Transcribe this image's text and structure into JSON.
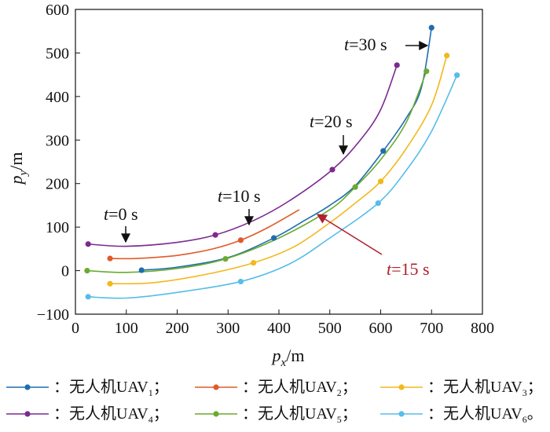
{
  "chart_data": {
    "type": "line",
    "xlabel": {
      "symbol": "p",
      "sub": "x",
      "unit": "/m"
    },
    "ylabel": {
      "symbol": "p",
      "sub": "y",
      "unit": "/m"
    },
    "xlim": [
      0,
      800
    ],
    "ylim": [
      -100,
      600
    ],
    "xticks": [
      0,
      100,
      200,
      300,
      400,
      500,
      600,
      700,
      800
    ],
    "yticks": [
      -100,
      0,
      100,
      200,
      300,
      400,
      500,
      600
    ],
    "grid": false,
    "legend_position": "bottom",
    "annotations": [
      {
        "time": "0",
        "unit": "s",
        "color": "black",
        "arrow": "down"
      },
      {
        "time": "10",
        "unit": "s",
        "color": "black",
        "arrow": "down"
      },
      {
        "time": "20",
        "unit": "s",
        "color": "black",
        "arrow": "down"
      },
      {
        "time": "30",
        "unit": "s",
        "color": "black",
        "arrow": "right"
      },
      {
        "time": "15",
        "unit": "s",
        "color": "#b0202e",
        "arrow": "diagonal"
      }
    ],
    "series": [
      {
        "name": "无人机UAV",
        "index": "1",
        "suffix": "；",
        "color": "#1f6cb0",
        "curve": [
          [
            130,
            1
          ],
          [
            200,
            8
          ],
          [
            300,
            30
          ],
          [
            390,
            75
          ],
          [
            450,
            115
          ],
          [
            500,
            150
          ],
          [
            550,
            195
          ],
          [
            605,
            275
          ],
          [
            650,
            350
          ],
          [
            680,
            420
          ],
          [
            700,
            558
          ]
        ],
        "markers": [
          [
            130,
            1
          ],
          [
            390,
            75
          ],
          [
            605,
            275
          ],
          [
            700,
            558
          ]
        ]
      },
      {
        "name": "无人机UAV",
        "index": "2",
        "suffix": "；",
        "color": "#e05a2a",
        "curve": [
          [
            68,
            28
          ],
          [
            120,
            28
          ],
          [
            200,
            35
          ],
          [
            270,
            50
          ],
          [
            325,
            70
          ],
          [
            380,
            100
          ],
          [
            440,
            140
          ]
        ],
        "markers": [
          [
            68,
            28
          ],
          [
            325,
            70
          ]
        ]
      },
      {
        "name": "无人机UAV",
        "index": "3",
        "suffix": "；",
        "color": "#f2b81c",
        "curve": [
          [
            68,
            -30
          ],
          [
            150,
            -28
          ],
          [
            250,
            -10
          ],
          [
            350,
            18
          ],
          [
            430,
            55
          ],
          [
            500,
            110
          ],
          [
            550,
            155
          ],
          [
            600,
            205
          ],
          [
            650,
            280
          ],
          [
            700,
            380
          ],
          [
            730,
            494
          ]
        ],
        "markers": [
          [
            68,
            -30
          ],
          [
            350,
            18
          ],
          [
            600,
            205
          ],
          [
            730,
            494
          ]
        ]
      },
      {
        "name": "无人机UAV",
        "index": "4",
        "suffix": "；",
        "color": "#7b2a8f",
        "curve": [
          [
            25,
            61
          ],
          [
            100,
            56
          ],
          [
            200,
            65
          ],
          [
            275,
            82
          ],
          [
            350,
            115
          ],
          [
            420,
            160
          ],
          [
            505,
            232
          ],
          [
            560,
            300
          ],
          [
            600,
            370
          ],
          [
            632,
            472
          ]
        ],
        "markers": [
          [
            25,
            61
          ],
          [
            275,
            82
          ],
          [
            505,
            232
          ],
          [
            632,
            472
          ]
        ]
      },
      {
        "name": "无人机UAV",
        "index": "5",
        "suffix": "；",
        "color": "#6aab2f",
        "curve": [
          [
            23,
            0
          ],
          [
            100,
            -4
          ],
          [
            200,
            5
          ],
          [
            295,
            27
          ],
          [
            400,
            75
          ],
          [
            500,
            140
          ],
          [
            550,
            192
          ],
          [
            600,
            255
          ],
          [
            650,
            340
          ],
          [
            690,
            458
          ]
        ],
        "markers": [
          [
            23,
            0
          ],
          [
            295,
            27
          ],
          [
            550,
            192
          ],
          [
            690,
            458
          ]
        ]
      },
      {
        "name": "无人机UAV",
        "index": "6",
        "suffix": "。",
        "color": "#56bde8",
        "curve": [
          [
            25,
            -60
          ],
          [
            100,
            -63
          ],
          [
            200,
            -50
          ],
          [
            325,
            -25
          ],
          [
            420,
            15
          ],
          [
            500,
            75
          ],
          [
            595,
            155
          ],
          [
            650,
            230
          ],
          [
            700,
            320
          ],
          [
            750,
            449
          ]
        ],
        "markers": [
          [
            25,
            -60
          ],
          [
            325,
            -25
          ],
          [
            595,
            155
          ],
          [
            750,
            449
          ]
        ]
      }
    ]
  }
}
